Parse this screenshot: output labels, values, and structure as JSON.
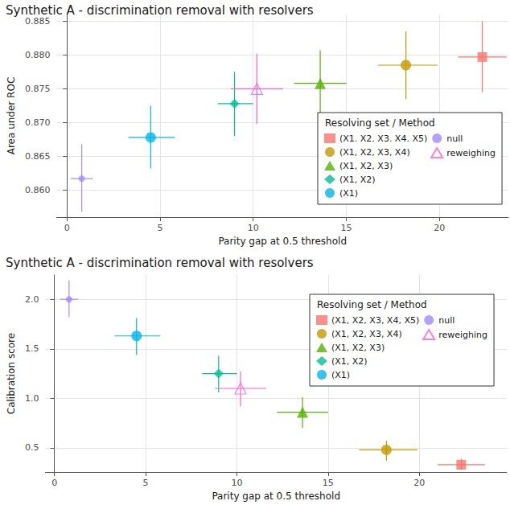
{
  "chart_data": [
    {
      "type": "scatter",
      "title": "Synthetic A - discrimination removal with resolvers",
      "x_label": "Parity gap at 0.5 threshold",
      "y_label": "Area under ROC",
      "legend_title": "Resolving set / Method",
      "legend": "bottom-right",
      "grid": true,
      "xlim": [
        -0.55,
        23.7
      ],
      "xticks": [
        0,
        5,
        10,
        15,
        20
      ],
      "ylim": [
        0.856,
        0.886
      ],
      "yticks": [
        {
          "value": 0.86,
          "label": "0.860"
        },
        0.865,
        {
          "value": 0.87,
          "label": "0.870"
        },
        0.875,
        {
          "value": 0.88,
          "label": "0.880"
        },
        0.885
      ],
      "series": [
        {
          "name": "(X1. X2. X3. X4. X5)",
          "color": "#F8766D",
          "marker": "square",
          "x": [
            22.3
          ],
          "values": [
            0.8797
          ],
          "x_low": [
            21.0
          ],
          "x_high": [
            23.6
          ],
          "y_low": [
            0.8745
          ],
          "y_high": [
            0.885
          ]
        },
        {
          "name": "(X1, X2, X3, X4)",
          "color": "#C49A00",
          "marker": "circle",
          "x": [
            18.2
          ],
          "values": [
            0.8785
          ],
          "x_low": [
            16.7
          ],
          "x_high": [
            19.9
          ],
          "y_low": [
            0.8735
          ],
          "y_high": [
            0.8835
          ]
        },
        {
          "name": "(X1, X2, X3)",
          "color": "#53B400",
          "marker": "triangle",
          "x": [
            13.6
          ],
          "values": [
            0.8758
          ],
          "x_low": [
            12.2
          ],
          "x_high": [
            15.0
          ],
          "y_low": [
            0.8708
          ],
          "y_high": [
            0.8807
          ]
        },
        {
          "name": "(X1, X2)",
          "color": "#00C094",
          "marker": "diamond",
          "x": [
            9.0
          ],
          "values": [
            0.8728
          ],
          "x_low": [
            8.1
          ],
          "x_high": [
            10.0
          ],
          "y_low": [
            0.868
          ],
          "y_high": [
            0.8775
          ]
        },
        {
          "name": "(X1)",
          "color": "#00B6EB",
          "marker": "circle",
          "x": [
            4.5
          ],
          "values": [
            0.8678
          ],
          "x_low": [
            3.3
          ],
          "x_high": [
            5.8
          ],
          "y_low": [
            0.8632
          ],
          "y_high": [
            0.8725
          ]
        },
        {
          "name": "null",
          "color": "#A58AFF",
          "marker": "small_circle",
          "x": [
            0.8
          ],
          "values": [
            0.8617
          ],
          "x_low": [
            0.2
          ],
          "x_high": [
            1.4
          ],
          "y_low": [
            0.8568
          ],
          "y_high": [
            0.8668
          ]
        },
        {
          "name": "reweighing",
          "color": "#FB61D7",
          "marker": "open_triangle",
          "x": [
            10.2
          ],
          "values": [
            0.875
          ],
          "x_low": [
            8.8
          ],
          "x_high": [
            11.6
          ],
          "y_low": [
            0.8698
          ],
          "y_high": [
            0.8802
          ]
        }
      ]
    },
    {
      "type": "scatter",
      "title": "Synthetic A - discrimination removal with resolvers",
      "x_label": "Parity gap at 0.5 threshold",
      "y_label": "Calibration score",
      "legend_title": "Resolving set / Method",
      "legend": "top-right",
      "grid": true,
      "xlim": [
        -0.5,
        24.8
      ],
      "xticks": [
        0,
        5,
        10,
        15,
        20
      ],
      "ylim": [
        0.255,
        2.245
      ],
      "yticks": [
        0.5,
        {
          "value": 1,
          "label": "1.0"
        },
        1.5,
        {
          "value": 2,
          "label": "2.0"
        }
      ],
      "series": [
        {
          "name": "(X1, X2, X3, X4, X5)",
          "color": "#F8766D",
          "marker": "square",
          "x": [
            22.3
          ],
          "values": [
            0.33
          ],
          "x_low": [
            21.0
          ],
          "x_high": [
            23.6
          ],
          "y_low": [
            0.28
          ],
          "y_high": [
            0.39
          ]
        },
        {
          "name": "(X1, X2, X3, X4)",
          "color": "#C49A00",
          "marker": "circle",
          "x": [
            18.2
          ],
          "values": [
            0.48
          ],
          "x_low": [
            16.7
          ],
          "x_high": [
            19.9
          ],
          "y_low": [
            0.37
          ],
          "y_high": [
            0.57
          ]
        },
        {
          "name": "(X1, X2, X3)",
          "color": "#53B400",
          "marker": "triangle",
          "x": [
            13.6
          ],
          "values": [
            0.86
          ],
          "x_low": [
            12.2
          ],
          "x_high": [
            15.0
          ],
          "y_low": [
            0.7
          ],
          "y_high": [
            1.01
          ]
        },
        {
          "name": "(X1, X2)",
          "color": "#00C094",
          "marker": "diamond",
          "x": [
            9.0
          ],
          "values": [
            1.25
          ],
          "x_low": [
            8.1
          ],
          "x_high": [
            10.0
          ],
          "y_low": [
            1.06
          ],
          "y_high": [
            1.43
          ]
        },
        {
          "name": "(X1)",
          "color": "#00B6EB",
          "marker": "circle",
          "x": [
            4.5
          ],
          "values": [
            1.63
          ],
          "x_low": [
            3.3
          ],
          "x_high": [
            5.8
          ],
          "y_low": [
            1.44
          ],
          "y_high": [
            1.81
          ]
        },
        {
          "name": "null",
          "color": "#A58AFF",
          "marker": "small_circle",
          "x": [
            0.8
          ],
          "values": [
            2.0
          ],
          "x_low": [
            0.3
          ],
          "x_high": [
            1.3
          ],
          "y_low": [
            1.82
          ],
          "y_high": [
            2.19
          ]
        },
        {
          "name": "reweighing",
          "color": "#FB61D7",
          "marker": "open_triangle",
          "x": [
            10.2
          ],
          "values": [
            1.1
          ],
          "x_low": [
            8.8
          ],
          "x_high": [
            11.6
          ],
          "y_low": [
            0.92
          ],
          "y_high": [
            1.27
          ]
        }
      ]
    }
  ]
}
